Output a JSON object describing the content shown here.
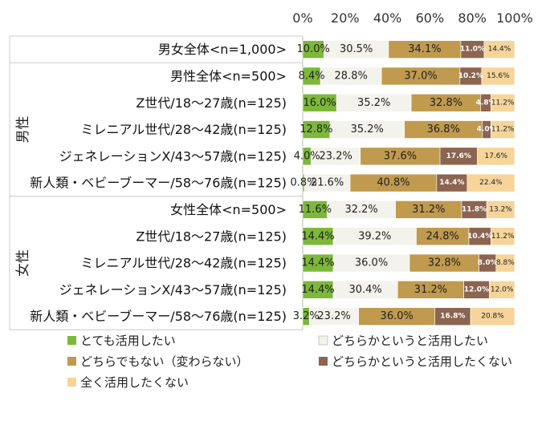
{
  "chart_data": {
    "type": "bar",
    "orientation": "horizontal",
    "stacked": "percent",
    "x_ticks": [
      "0%",
      "20%",
      "40%",
      "60%",
      "80%",
      "100%"
    ],
    "xlim": [
      0,
      100
    ],
    "groups": [
      {
        "label": "",
        "rows": [
          0
        ]
      },
      {
        "label": "男性",
        "rows": [
          1,
          2,
          3,
          4,
          5
        ]
      },
      {
        "label": "女性",
        "rows": [
          6,
          7,
          8,
          9,
          10
        ]
      }
    ],
    "categories": [
      "男女全体<n=1,000>",
      "男性全体<n=500>",
      "Z世代/18～27歳(n=125)",
      "ミレニアル世代/28～42歳(n=125)",
      "ジェネレーションX/43～57歳(n=125)",
      "新人類・ベビーブーマー/58～76歳(n=125)",
      "女性全体<n=500>",
      "Z世代/18～27歳(n=125)",
      "ミレニアル世代/28～42歳(n=125)",
      "ジェネレーションX/43～57歳(n=125)",
      "新人類・ベビーブーマー/58～76歳(n=125)"
    ],
    "series": [
      {
        "name": "とても活用したい",
        "color": "#7DB83A",
        "values": [
          10.0,
          8.4,
          16.0,
          12.8,
          4.0,
          0.8,
          11.6,
          14.4,
          14.4,
          14.4,
          3.2
        ],
        "labels": [
          "10.0%",
          "8.4%",
          "16.0%",
          "12.8%",
          "4.0%",
          "0.8%",
          "11.6%",
          "14.4%",
          "14.4%",
          "14.4%",
          "3.2%"
        ]
      },
      {
        "name": "どちらかというと活用したい",
        "color": "#F4F2EC",
        "values": [
          30.5,
          28.8,
          35.2,
          35.2,
          23.2,
          21.6,
          32.2,
          39.2,
          36.0,
          30.4,
          23.2
        ],
        "labels": [
          "30.5%",
          "28.8%",
          "35.2%",
          "35.2%",
          "23.2%",
          "21.6%",
          "32.2%",
          "39.2%",
          "36.0%",
          "30.4%",
          "23.2%"
        ]
      },
      {
        "name": "どちらでもない（変わらない）",
        "color": "#C09A4E",
        "values": [
          34.1,
          37.0,
          32.8,
          36.8,
          37.6,
          40.8,
          31.2,
          24.8,
          32.8,
          31.2,
          36.0
        ],
        "labels": [
          "34.1%",
          "37.0%",
          "32.8%",
          "36.8%",
          "37.6%",
          "40.8%",
          "31.2%",
          "24.8%",
          "32.8%",
          "31.2%",
          "36.0%"
        ]
      },
      {
        "name": "どちらかというと活用したくない",
        "color": "#8C6450",
        "values": [
          11.0,
          10.2,
          4.8,
          4.0,
          17.6,
          14.4,
          11.8,
          10.4,
          8.0,
          12.0,
          16.8
        ],
        "labels": [
          "11.0%",
          "10.2%",
          "4.8%",
          "4.0%",
          "17.6%",
          "14.4%",
          "11.8%",
          "10.4%",
          "8.0%",
          "12.0%",
          "16.8%"
        ]
      },
      {
        "name": "全く活用したくない",
        "color": "#F6D49A",
        "values": [
          14.4,
          15.6,
          11.2,
          11.2,
          17.6,
          22.4,
          13.2,
          11.2,
          8.8,
          12.0,
          20.8
        ],
        "labels": [
          "14.4%",
          "15.6%",
          "11.2%",
          "11.2%",
          "17.6%",
          "22.4%",
          "13.2%",
          "11.2%",
          "8.8%",
          "12.0%",
          "20.8%"
        ]
      }
    ],
    "legend": {
      "placement": "bottom",
      "columns": 2
    }
  }
}
